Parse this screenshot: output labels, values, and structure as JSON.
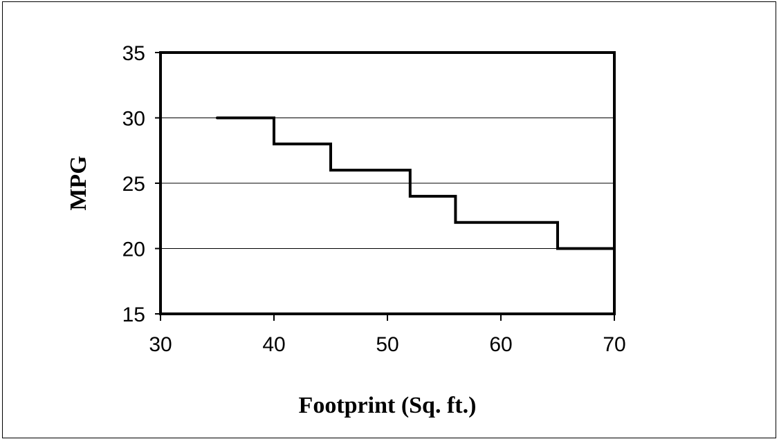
{
  "chart_data": {
    "type": "line",
    "step": true,
    "xlabel": "Footprint (Sq. ft.)",
    "ylabel": "MPG",
    "xlim": [
      30,
      70
    ],
    "ylim": [
      15,
      35
    ],
    "xticks": [
      30,
      40,
      50,
      60,
      70
    ],
    "yticks": [
      15,
      20,
      25,
      30,
      35
    ],
    "grid": "horizontal",
    "series": [
      {
        "x": [
          35,
          40,
          40,
          45,
          45,
          52,
          52,
          56,
          56,
          65,
          65,
          70
        ],
        "y": [
          30,
          30,
          28,
          28,
          26,
          26,
          24,
          24,
          22,
          22,
          20,
          20
        ]
      }
    ],
    "colors": {
      "line": "#000000",
      "grid": "#000000",
      "background": "#ffffff"
    }
  }
}
